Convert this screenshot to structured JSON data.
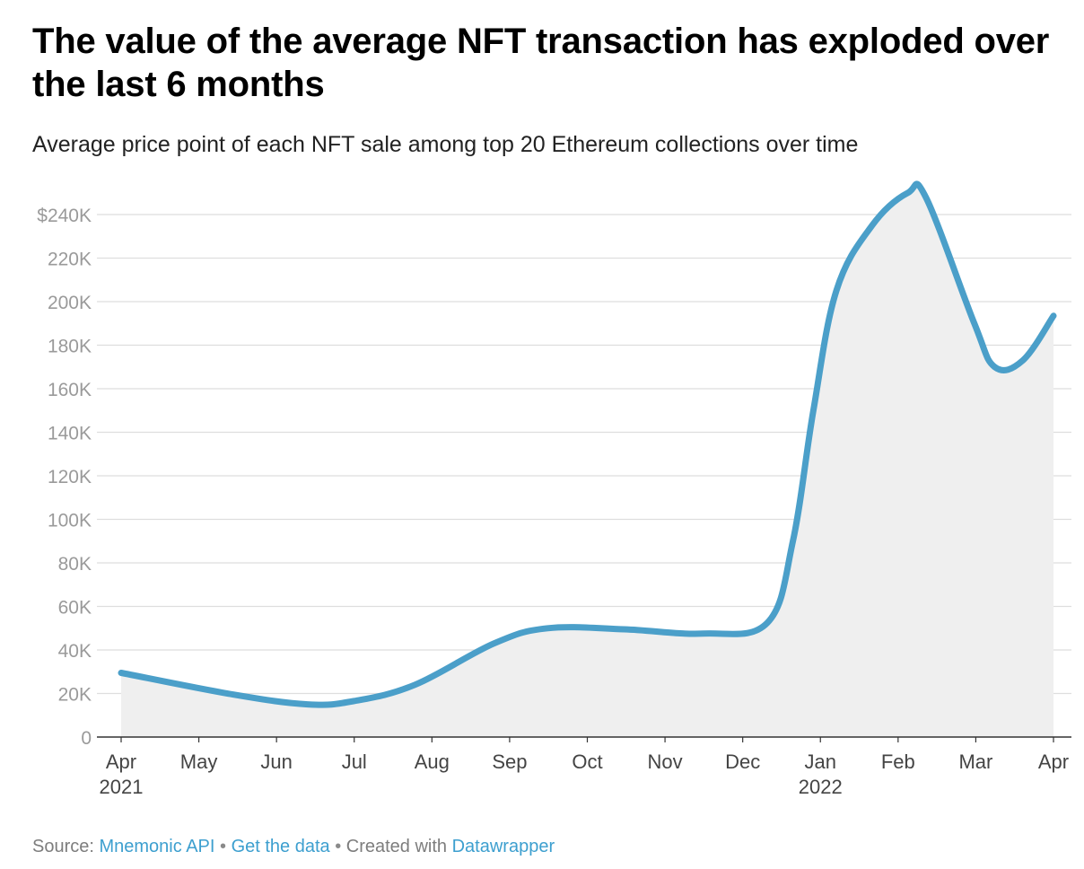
{
  "title": "The value of the average NFT transaction has exploded over the last 6 months",
  "subtitle": "Average price point of each NFT sale among top 20 Ethereum collections over time",
  "colors": {
    "line": "#4b9fc9",
    "area": "#efefef",
    "grid": "#dedede",
    "axis": "#333333",
    "tick_label": "#9a9a9a",
    "x_label": "#444444"
  },
  "chart_data": {
    "type": "area",
    "x": [
      "2021-04-01",
      "2021-05-01",
      "2021-06-01",
      "2021-07-01",
      "2021-08-01",
      "2021-09-01",
      "2021-10-01",
      "2021-11-01",
      "2021-12-01",
      "2022-01-01",
      "2022-02-01",
      "2022-03-01",
      "2022-04-01"
    ],
    "x_tick_labels": [
      {
        "month": "Apr",
        "year": "2021"
      },
      {
        "month": "May",
        "year": ""
      },
      {
        "month": "Jun",
        "year": ""
      },
      {
        "month": "Jul",
        "year": ""
      },
      {
        "month": "Aug",
        "year": ""
      },
      {
        "month": "Sep",
        "year": ""
      },
      {
        "month": "Oct",
        "year": ""
      },
      {
        "month": "Nov",
        "year": ""
      },
      {
        "month": "Dec",
        "year": ""
      },
      {
        "month": "Jan",
        "year": "2022"
      },
      {
        "month": "Feb",
        "year": ""
      },
      {
        "month": "Mar",
        "year": ""
      },
      {
        "month": "Apr",
        "year": ""
      }
    ],
    "series": [
      {
        "points": [
          {
            "x": "2021-04-01",
            "y": 29500
          },
          {
            "x": "2021-05-15",
            "y": 19500
          },
          {
            "x": "2021-06-13",
            "y": 15000
          },
          {
            "x": "2021-07-01",
            "y": 16500
          },
          {
            "x": "2021-07-25",
            "y": 24000
          },
          {
            "x": "2021-08-25",
            "y": 43000
          },
          {
            "x": "2021-09-15",
            "y": 50000
          },
          {
            "x": "2021-10-15",
            "y": 49500
          },
          {
            "x": "2021-11-15",
            "y": 47500
          },
          {
            "x": "2021-12-10",
            "y": 52500
          },
          {
            "x": "2021-12-20",
            "y": 90000
          },
          {
            "x": "2021-12-28",
            "y": 150000
          },
          {
            "x": "2022-01-06",
            "y": 205000
          },
          {
            "x": "2022-01-20",
            "y": 235000
          },
          {
            "x": "2022-02-03",
            "y": 250000
          },
          {
            "x": "2022-02-10",
            "y": 248000
          },
          {
            "x": "2022-03-01",
            "y": 190000
          },
          {
            "x": "2022-03-09",
            "y": 170000
          },
          {
            "x": "2022-03-20",
            "y": 173000
          },
          {
            "x": "2022-04-01",
            "y": 193500
          }
        ]
      }
    ],
    "y_ticks": [
      {
        "value": 0,
        "label": "0"
      },
      {
        "value": 20000,
        "label": "20K"
      },
      {
        "value": 40000,
        "label": "40K"
      },
      {
        "value": 60000,
        "label": "60K"
      },
      {
        "value": 80000,
        "label": "80K"
      },
      {
        "value": 100000,
        "label": "100K"
      },
      {
        "value": 120000,
        "label": "120K"
      },
      {
        "value": 140000,
        "label": "140K"
      },
      {
        "value": 160000,
        "label": "160K"
      },
      {
        "value": 180000,
        "label": "180K"
      },
      {
        "value": 200000,
        "label": "200K"
      },
      {
        "value": 220000,
        "label": "220K"
      },
      {
        "value": 240000,
        "label": "$240K"
      }
    ],
    "ylim": [
      0,
      250000
    ],
    "xlim": [
      "2021-04-01",
      "2022-04-01"
    ],
    "grid": true,
    "legend": "none"
  },
  "footer": {
    "source_prefix": "Source: ",
    "source_link": "Mnemonic API",
    "separator": " • ",
    "data_link": "Get the data",
    "created_prefix": "Created with ",
    "tool_link": "Datawrapper"
  }
}
